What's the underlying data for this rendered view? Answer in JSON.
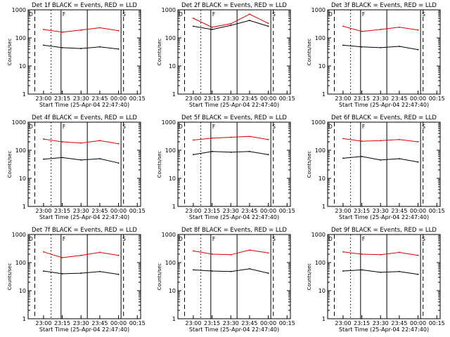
{
  "figure": {
    "xlabel": "Start Time (25-Apr-04 22:47:40)",
    "ylabel": "Counts/sec",
    "x_ticks": [
      "23:00",
      "23:15",
      "23:30",
      "23:45",
      "00:00",
      "00:15"
    ],
    "y_ticks": [
      "1",
      "10",
      "100",
      "1000"
    ],
    "markers": [
      "D",
      "F",
      "S"
    ],
    "colors": {
      "events": "#000000",
      "lld": "#dd0000",
      "background": "#ffffff"
    }
  },
  "chart_data": [
    {
      "type": "line",
      "title": "Det 1f BLACK = Events, RED = LLD",
      "ylim": [
        1,
        1000
      ],
      "yscale": "log",
      "grid": false,
      "x": [
        "23:00",
        "23:15",
        "23:30",
        "23:45",
        "00:00"
      ],
      "series": [
        {
          "name": "Events",
          "values": [
            55,
            45,
            42,
            48,
            40
          ]
        },
        {
          "name": "LLD",
          "values": [
            200,
            160,
            190,
            230,
            180
          ]
        }
      ]
    },
    {
      "type": "line",
      "title": "Det 2f BLACK = Events, RED = LLD",
      "ylim": [
        1,
        1000
      ],
      "yscale": "log",
      "grid": false,
      "x": [
        "23:00",
        "23:15",
        "23:30",
        "23:45",
        "00:00"
      ],
      "series": [
        {
          "name": "Events",
          "values": [
            260,
            200,
            280,
            420,
            260
          ]
        },
        {
          "name": "LLD",
          "values": [
            500,
            240,
            320,
            700,
            330
          ]
        }
      ]
    },
    {
      "type": "line",
      "title": "Det 3f BLACK = Events, RED = LLD",
      "ylim": [
        1,
        1000
      ],
      "yscale": "log",
      "grid": false,
      "x": [
        "23:00",
        "23:15",
        "23:30",
        "23:45",
        "00:00"
      ],
      "series": [
        {
          "name": "Events",
          "values": [
            55,
            48,
            45,
            50,
            38
          ]
        },
        {
          "name": "LLD",
          "values": [
            260,
            170,
            200,
            240,
            190
          ]
        }
      ]
    },
    {
      "type": "line",
      "title": "Det 4f BLACK = Events, RED = LLD",
      "ylim": [
        1,
        1000
      ],
      "yscale": "log",
      "grid": false,
      "x": [
        "23:00",
        "23:15",
        "23:30",
        "23:45",
        "00:00"
      ],
      "series": [
        {
          "name": "Events",
          "values": [
            48,
            55,
            45,
            50,
            35
          ]
        },
        {
          "name": "LLD",
          "values": [
            250,
            200,
            180,
            220,
            170
          ]
        }
      ]
    },
    {
      "type": "line",
      "title": "Det 5f BLACK = Events, RED = LLD",
      "ylim": [
        1,
        1000
      ],
      "yscale": "log",
      "grid": false,
      "x": [
        "23:00",
        "23:15",
        "23:30",
        "23:45",
        "00:00"
      ],
      "series": [
        {
          "name": "Events",
          "values": [
            70,
            90,
            85,
            90,
            70
          ]
        },
        {
          "name": "LLD",
          "values": [
            230,
            270,
            290,
            310,
            240
          ]
        }
      ]
    },
    {
      "type": "line",
      "title": "Det 6f BLACK = Events, RED = LLD",
      "ylim": [
        1,
        1000
      ],
      "yscale": "log",
      "grid": false,
      "x": [
        "23:00",
        "23:15",
        "23:30",
        "23:45",
        "00:00"
      ],
      "series": [
        {
          "name": "Events",
          "values": [
            52,
            60,
            45,
            50,
            38
          ]
        },
        {
          "name": "LLD",
          "values": [
            260,
            210,
            220,
            240,
            200
          ]
        }
      ]
    },
    {
      "type": "line",
      "title": "Det 7f BLACK = Events, RED = LLD",
      "ylim": [
        1,
        1000
      ],
      "yscale": "log",
      "grid": false,
      "x": [
        "23:00",
        "23:15",
        "23:30",
        "23:45",
        "00:00"
      ],
      "series": [
        {
          "name": "Events",
          "values": [
            50,
            40,
            42,
            48,
            38
          ]
        },
        {
          "name": "LLD",
          "values": [
            240,
            150,
            180,
            230,
            180
          ]
        }
      ]
    },
    {
      "type": "line",
      "title": "Det 8f BLACK = Events, RED = LLD",
      "ylim": [
        1,
        1000
      ],
      "yscale": "log",
      "grid": false,
      "x": [
        "23:00",
        "23:15",
        "23:30",
        "23:45",
        "00:00"
      ],
      "series": [
        {
          "name": "Events",
          "values": [
            55,
            50,
            48,
            60,
            42
          ]
        },
        {
          "name": "LLD",
          "values": [
            260,
            200,
            190,
            280,
            220
          ]
        }
      ]
    },
    {
      "type": "line",
      "title": "Det 9f BLACK = Events, RED = LLD",
      "ylim": [
        1,
        1000
      ],
      "yscale": "log",
      "grid": false,
      "x": [
        "23:00",
        "23:15",
        "23:30",
        "23:45",
        "00:00"
      ],
      "series": [
        {
          "name": "Events",
          "values": [
            50,
            55,
            45,
            48,
            38
          ]
        },
        {
          "name": "LLD",
          "values": [
            240,
            200,
            190,
            230,
            180
          ]
        }
      ]
    }
  ]
}
